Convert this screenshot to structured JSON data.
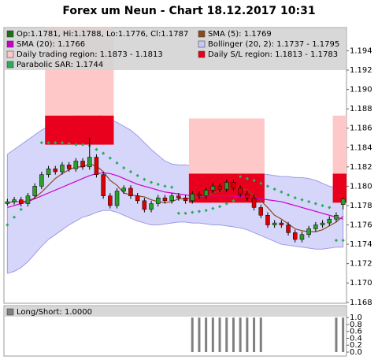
{
  "chart_data": [
    {
      "type": "candlestick",
      "title": "Forex um Neun - Chart 18.12.2017 10:31",
      "ylim": [
        1.1679,
        1.1964
      ],
      "yticks": [
        1.168,
        {
          "value": 1.17,
          "label": "1.170"
        },
        1.172,
        1.174,
        1.176,
        1.178,
        {
          "value": 1.18,
          "label": "1.180"
        },
        1.182,
        1.184,
        1.186,
        1.188,
        {
          "value": 1.19,
          "label": "1.190"
        },
        1.192,
        1.194
      ],
      "ohlc": {
        "name": "Op:1.1781, Hi:1.1788, Lo:1.1776, Cl:1.1787",
        "color": "#1e6e1e",
        "color_up": "#2e9e2e",
        "color_down": "#dd0000",
        "open": [
          1.1782,
          1.1784,
          1.1786,
          1.1782,
          1.179,
          1.18,
          1.1812,
          1.1818,
          1.1815,
          1.1822,
          1.1818,
          1.1826,
          1.182,
          1.183,
          1.1812,
          1.179,
          1.178,
          1.1795,
          1.1798,
          1.179,
          1.1785,
          1.1776,
          1.1782,
          1.1788,
          1.1785,
          1.179,
          1.1788,
          1.1785,
          1.1792,
          1.179,
          1.1796,
          1.18,
          1.1797,
          1.1804,
          1.1798,
          1.1792,
          1.1788,
          1.1778,
          1.177,
          1.176,
          1.1762,
          1.176,
          1.1752,
          1.1745,
          1.175,
          1.1756,
          1.176,
          1.1762,
          1.1766,
          1.1781
        ],
        "high": [
          1.1787,
          1.1789,
          1.1789,
          1.1793,
          1.1803,
          1.1815,
          1.1821,
          1.1821,
          1.1825,
          1.1825,
          1.1829,
          1.1829,
          1.185,
          1.1833,
          1.1815,
          1.1793,
          1.1798,
          1.1801,
          1.1801,
          1.1793,
          1.1788,
          1.1785,
          1.1791,
          1.1791,
          1.1793,
          1.1793,
          1.1791,
          1.1795,
          1.1795,
          1.1799,
          1.1803,
          1.1803,
          1.1807,
          1.1807,
          1.1801,
          1.1795,
          1.1791,
          1.1781,
          1.1773,
          1.1765,
          1.1765,
          1.1763,
          1.1755,
          1.1753,
          1.1759,
          1.1763,
          1.1765,
          1.1769,
          1.1773,
          1.1788
        ],
        "low": [
          1.178,
          1.1781,
          1.1779,
          1.1779,
          1.1787,
          1.1797,
          1.1809,
          1.1812,
          1.1812,
          1.1815,
          1.1815,
          1.1817,
          1.1817,
          1.1809,
          1.1787,
          1.1777,
          1.1777,
          1.1792,
          1.1787,
          1.1782,
          1.1773,
          1.1773,
          1.1779,
          1.1782,
          1.1782,
          1.1785,
          1.1782,
          1.1782,
          1.1787,
          1.1787,
          1.1793,
          1.1794,
          1.1794,
          1.1795,
          1.1789,
          1.1785,
          1.1775,
          1.1767,
          1.1757,
          1.1757,
          1.1757,
          1.1749,
          1.1742,
          1.1742,
          1.1747,
          1.1753,
          1.1757,
          1.1759,
          1.1763,
          1.1776
        ],
        "close": [
          1.1784,
          1.1786,
          1.1782,
          1.179,
          1.18,
          1.1812,
          1.1818,
          1.1815,
          1.1822,
          1.1818,
          1.1826,
          1.182,
          1.183,
          1.1812,
          1.179,
          1.178,
          1.1795,
          1.1798,
          1.179,
          1.1785,
          1.1776,
          1.1782,
          1.1788,
          1.1785,
          1.179,
          1.1788,
          1.1785,
          1.1792,
          1.179,
          1.1796,
          1.18,
          1.1797,
          1.1804,
          1.1798,
          1.1792,
          1.1788,
          1.1778,
          1.177,
          1.176,
          1.1762,
          1.176,
          1.1752,
          1.1745,
          1.175,
          1.1756,
          1.176,
          1.1762,
          1.1766,
          1.177,
          1.1787
        ]
      },
      "bands": [
        {
          "name": "Bollinger (20, 2): 1.1737 - 1.1795",
          "color": "#c8c8f8",
          "style": "area",
          "upper": [
            1.1833,
            1.1838,
            1.1843,
            1.1848,
            1.1853,
            1.1858,
            1.1862,
            1.1866,
            1.1869,
            1.1871,
            1.1873,
            1.1874,
            1.1875,
            1.1874,
            1.1872,
            1.1869,
            1.1866,
            1.1862,
            1.1858,
            1.1852,
            1.1845,
            1.1838,
            1.1832,
            1.1826,
            1.1823,
            1.1822,
            1.1822,
            1.1821,
            1.1818,
            1.1815,
            1.1813,
            1.1812,
            1.1813,
            1.1814,
            1.1815,
            1.1815,
            1.1814,
            1.1813,
            1.1812,
            1.1811,
            1.181,
            1.181,
            1.1809,
            1.1809,
            1.1808,
            1.1806,
            1.1803,
            1.18,
            1.1798,
            1.1795
          ],
          "lower": [
            1.171,
            1.1712,
            1.1716,
            1.1722,
            1.173,
            1.1738,
            1.1745,
            1.175,
            1.1755,
            1.176,
            1.1764,
            1.1768,
            1.177,
            1.1773,
            1.1775,
            1.1775,
            1.1773,
            1.177,
            1.1767,
            1.1764,
            1.1762,
            1.176,
            1.176,
            1.1761,
            1.1762,
            1.1763,
            1.1763,
            1.1762,
            1.1762,
            1.1761,
            1.176,
            1.176,
            1.1759,
            1.1758,
            1.1757,
            1.1755,
            1.1752,
            1.1749,
            1.1746,
            1.1743,
            1.174,
            1.1739,
            1.1738,
            1.1737,
            1.1736,
            1.1735,
            1.1735,
            1.1736,
            1.1737,
            1.1737
          ]
        },
        {
          "name": "Daily trading region: 1.1873 - 1.1813",
          "color": "#ffc8c8",
          "style": "blocks",
          "upper": [
            null,
            null,
            null,
            null,
            null,
            null,
            1.1964,
            1.1964,
            1.1964,
            1.1964,
            1.1964,
            1.1964,
            1.1964,
            1.1964,
            1.1964,
            1.1964,
            null,
            null,
            null,
            null,
            null,
            null,
            null,
            null,
            null,
            null,
            null,
            1.187,
            1.187,
            1.187,
            1.187,
            1.187,
            1.187,
            1.187,
            1.187,
            1.187,
            1.187,
            1.187,
            null,
            null,
            null,
            null,
            null,
            null,
            null,
            null,
            null,
            null,
            1.1873,
            1.1873
          ],
          "lower": [
            null,
            null,
            null,
            null,
            null,
            null,
            1.1873,
            1.1873,
            1.1873,
            1.1873,
            1.1873,
            1.1873,
            1.1873,
            1.1873,
            1.1873,
            1.1873,
            null,
            null,
            null,
            null,
            null,
            null,
            null,
            null,
            null,
            null,
            null,
            1.1813,
            1.1813,
            1.1813,
            1.1813,
            1.1813,
            1.1813,
            1.1813,
            1.1813,
            1.1813,
            1.1813,
            1.1813,
            null,
            null,
            null,
            null,
            null,
            null,
            null,
            null,
            null,
            null,
            1.1813,
            1.1813
          ]
        },
        {
          "name": "Daily S/L region: 1.1813 - 1.1783",
          "color": "#e8001c",
          "style": "blocks",
          "upper": [
            null,
            null,
            null,
            null,
            null,
            null,
            1.1873,
            1.1873,
            1.1873,
            1.1873,
            1.1873,
            1.1873,
            1.1873,
            1.1873,
            1.1873,
            1.1873,
            null,
            null,
            null,
            null,
            null,
            null,
            null,
            null,
            null,
            null,
            null,
            1.1813,
            1.1813,
            1.1813,
            1.1813,
            1.1813,
            1.1813,
            1.1813,
            1.1813,
            1.1813,
            1.1813,
            1.1813,
            null,
            null,
            null,
            null,
            null,
            null,
            null,
            null,
            null,
            null,
            1.1813,
            1.1813
          ],
          "lower": [
            null,
            null,
            null,
            null,
            null,
            null,
            1.1843,
            1.1843,
            1.1843,
            1.1843,
            1.1843,
            1.1843,
            1.1843,
            1.1843,
            1.1843,
            1.1843,
            null,
            null,
            null,
            null,
            null,
            null,
            null,
            null,
            null,
            null,
            null,
            1.1783,
            1.1783,
            1.1783,
            1.1783,
            1.1783,
            1.1783,
            1.1783,
            1.1783,
            1.1783,
            1.1783,
            1.1783,
            null,
            null,
            null,
            null,
            null,
            null,
            null,
            null,
            null,
            null,
            1.1783,
            1.1783
          ]
        }
      ],
      "series": [
        {
          "name": "SMA (5): 1.1769",
          "color": "#8b4a20",
          "style": "line",
          "values": [
            1.1783,
            1.1784,
            1.1784,
            1.1785,
            1.1788,
            1.1794,
            1.1801,
            1.1808,
            1.1813,
            1.1817,
            1.182,
            1.182,
            1.1823,
            1.1821,
            1.1815,
            1.1806,
            1.1801,
            1.1793,
            1.1791,
            1.179,
            1.1789,
            1.1786,
            1.1784,
            1.1783,
            1.1784,
            1.1787,
            1.1787,
            1.1788,
            1.1789,
            1.179,
            1.1793,
            1.1795,
            1.1797,
            1.1799,
            1.1798,
            1.1796,
            1.179,
            1.1785,
            1.1778,
            1.177,
            1.1766,
            1.1761,
            1.1756,
            1.1754,
            1.1753,
            1.1753,
            1.1755,
            1.1759,
            1.1763,
            1.1769
          ]
        },
        {
          "name": "SMA (20): 1.1766",
          "color": "#cc00cc",
          "style": "line",
          "values": [
            1.1778,
            1.178,
            1.1782,
            1.1784,
            1.1787,
            1.179,
            1.1793,
            1.1796,
            1.1799,
            1.1802,
            1.1805,
            1.1808,
            1.1811,
            1.1813,
            1.1814,
            1.1813,
            1.1811,
            1.1808,
            1.1805,
            1.1802,
            1.18,
            1.1798,
            1.1796,
            1.1794,
            1.1793,
            1.1792,
            1.1791,
            1.179,
            1.179,
            1.179,
            1.179,
            1.179,
            1.179,
            1.179,
            1.1789,
            1.1789,
            1.1788,
            1.1787,
            1.1786,
            1.1785,
            1.1784,
            1.1782,
            1.178,
            1.1778,
            1.1776,
            1.1774,
            1.1772,
            1.177,
            1.1768,
            1.1766
          ]
        },
        {
          "name": "Parabolic SAR: 1.1744",
          "color": "#2eaa5a",
          "style": "dots",
          "values": [
            1.176,
            1.1768,
            1.1776,
            1.1784,
            1.1792,
            1.1845,
            1.1845,
            1.1845,
            1.1845,
            1.1844,
            1.1843,
            1.1843,
            1.1842,
            1.1838,
            1.1834,
            1.1829,
            1.1824,
            1.1819,
            1.1815,
            1.1811,
            1.1807,
            1.1804,
            1.1802,
            1.18,
            1.1799,
            1.1772,
            1.1772,
            1.1773,
            1.1774,
            1.1775,
            1.1777,
            1.1779,
            1.1782,
            1.1785,
            1.181,
            1.1808,
            1.1806,
            1.1803,
            1.18,
            1.1797,
            1.1794,
            1.1791,
            1.1788,
            1.1786,
            1.1784,
            1.1782,
            1.178,
            1.1778,
            1.1744,
            1.1744
          ]
        }
      ]
    },
    {
      "type": "bar",
      "name": "Long/Short: 1.0000",
      "color": "#808080",
      "ylim": [
        0,
        1.3
      ],
      "yticks": [
        {
          "value": 0,
          "label": "0.0"
        },
        0.2,
        0.4,
        0.6,
        0.8,
        {
          "value": 1,
          "label": "1.0"
        }
      ],
      "values": [
        0,
        0,
        0,
        0,
        0,
        0,
        0,
        0,
        0,
        0,
        0,
        0,
        0,
        0,
        0,
        0,
        0,
        0,
        0,
        0,
        0,
        0,
        0,
        0,
        0,
        0,
        0,
        1,
        1,
        1,
        1,
        1,
        1,
        1,
        1,
        1,
        1,
        1,
        0,
        0,
        0,
        0,
        0,
        0,
        0,
        0,
        0,
        0,
        1,
        1
      ]
    }
  ]
}
